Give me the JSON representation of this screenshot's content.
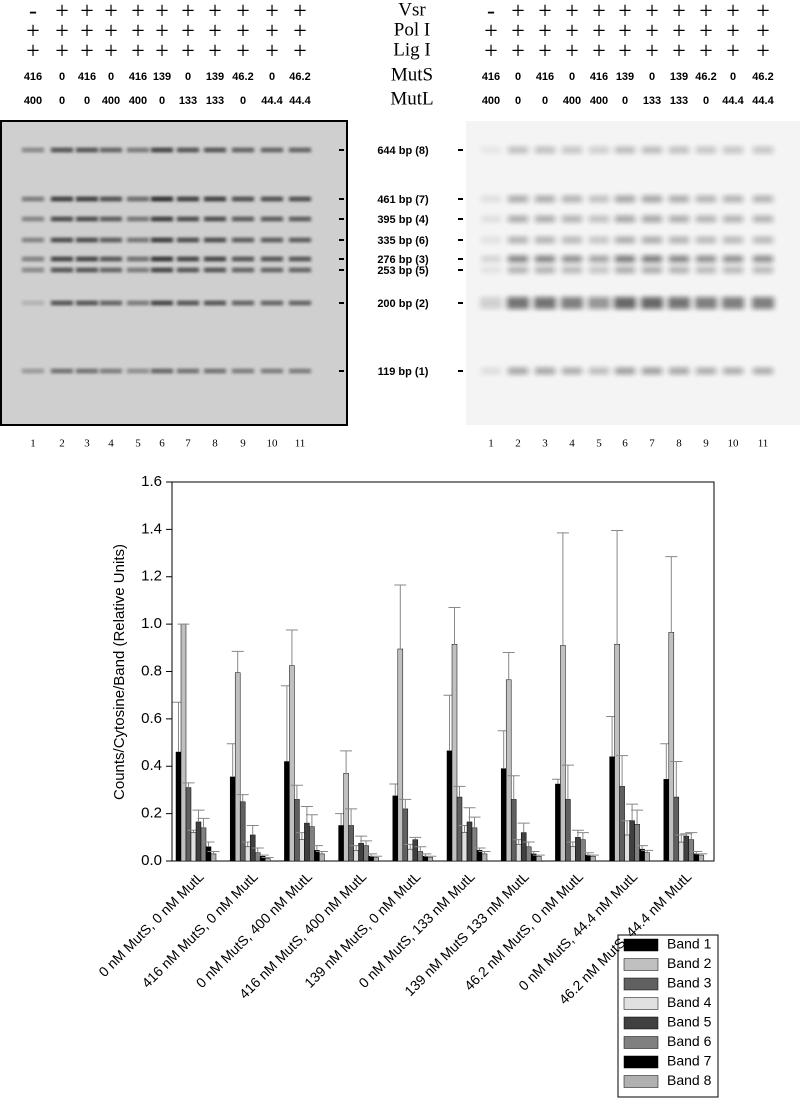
{
  "gel": {
    "rows": [
      {
        "label": "Vsr",
        "lanes": [
          "-",
          "+",
          "+",
          "+",
          "+",
          "+",
          "+",
          "+",
          "+",
          "+",
          "+"
        ]
      },
      {
        "label": "Pol I",
        "lanes": [
          "+",
          "+",
          "+",
          "+",
          "+",
          "+",
          "+",
          "+",
          "+",
          "+",
          "+"
        ]
      },
      {
        "label": "Lig I",
        "lanes": [
          "+",
          "+",
          "+",
          "+",
          "+",
          "+",
          "+",
          "+",
          "+",
          "+",
          "+"
        ]
      },
      {
        "label": "MutS",
        "lanes": [
          416,
          0,
          416,
          0,
          416,
          139,
          0,
          139,
          46.2,
          0,
          46.2
        ]
      },
      {
        "label": "MutL",
        "lanes": [
          400,
          0,
          0,
          400,
          400,
          0,
          133,
          133,
          0,
          44.4,
          44.4
        ]
      }
    ],
    "band_labels": [
      "644 bp (8)",
      "461 bp (7)",
      "395 bp (4)",
      "335 bp (6)",
      "276 bp (3)",
      "253 bp (5)",
      "200 bp (2)",
      "119 bp (1)"
    ],
    "lane_numbers": [
      1,
      2,
      3,
      4,
      5,
      6,
      7,
      8,
      9,
      10,
      11
    ]
  },
  "chart_data": {
    "type": "bar",
    "y_label": "Counts/Cytosine/Band (Relative Units)",
    "categories": [
      "0 nM MutS, 0 nM MutL",
      "416 nM MutS, 0 nM MutL",
      "0 nM MutS, 400 nM MutL",
      "416 nM MutS, 400 nM MutL",
      "139 nM MutS, 0 nM MutL",
      "0 nM MutS, 133 nM MutL",
      "139 nM MutS 133 nM MutL",
      "46.2 nM MutS, 0 nM MutL",
      "0 nM MutS, 44.4 nM MutL",
      "46.2 nM MutS, 44.4 nM MutL"
    ],
    "series": [
      {
        "name": "Band 1",
        "color": "#000000",
        "values": [
          0.46,
          0.355,
          0.42,
          0.15,
          0.275,
          0.465,
          0.39,
          0.325,
          0.44,
          0.345
        ],
        "errors": [
          0.21,
          0.14,
          0.32,
          0.05,
          0.05,
          0.235,
          0.16,
          0.02,
          0.17,
          0.15
        ]
      },
      {
        "name": "Band 2",
        "color": "#c0c0c0",
        "values": [
          1.0,
          0.795,
          0.825,
          0.37,
          0.895,
          0.915,
          0.765,
          0.91,
          0.915,
          0.965
        ],
        "errors": [
          0,
          0.09,
          0.15,
          0.095,
          0.27,
          0.155,
          0.115,
          0.475,
          0.48,
          0.32
        ]
      },
      {
        "name": "Band 3",
        "color": "#606060",
        "values": [
          0.31,
          0.25,
          0.26,
          0.15,
          0.22,
          0.27,
          0.26,
          0.26,
          0.315,
          0.27
        ],
        "errors": [
          0.02,
          0.03,
          0.06,
          0.07,
          0.04,
          0.045,
          0.1,
          0.145,
          0.13,
          0.15
        ]
      },
      {
        "name": "Band 4",
        "color": "#e0e0e0",
        "values": [
          0.12,
          0.06,
          0.09,
          0.045,
          0.05,
          0.12,
          0.07,
          0.06,
          0.11,
          0.08
        ],
        "errors": [
          0.01,
          0.02,
          0.03,
          0.02,
          0.02,
          0.03,
          0.02,
          0.02,
          0.06,
          0.03
        ]
      },
      {
        "name": "Band 5",
        "color": "#404040",
        "values": [
          0.165,
          0.11,
          0.16,
          0.075,
          0.09,
          0.165,
          0.12,
          0.1,
          0.17,
          0.105
        ],
        "errors": [
          0.05,
          0.04,
          0.07,
          0.03,
          0.01,
          0.06,
          0.04,
          0.03,
          0.07,
          0.01
        ]
      },
      {
        "name": "Band 6",
        "color": "#808080",
        "values": [
          0.14,
          0.035,
          0.145,
          0.065,
          0.04,
          0.14,
          0.06,
          0.09,
          0.155,
          0.09
        ],
        "errors": [
          0.04,
          0.02,
          0.05,
          0.02,
          0.02,
          0.045,
          0.02,
          0.03,
          0.06,
          0.03
        ]
      },
      {
        "name": "Band 7",
        "color": "#000000",
        "values": [
          0.06,
          0.02,
          0.045,
          0.02,
          0.02,
          0.045,
          0.03,
          0.025,
          0.05,
          0.03
        ],
        "errors": [
          0.02,
          0.005,
          0.02,
          0.01,
          0.01,
          0.01,
          0.01,
          0.01,
          0.015,
          0.01
        ]
      },
      {
        "name": "Band 8",
        "color": "#b0b0b0",
        "values": [
          0.03,
          0.01,
          0.03,
          0.015,
          0.015,
          0.03,
          0.02,
          0.02,
          0.035,
          0.025
        ],
        "errors": [
          0.01,
          0.005,
          0.01,
          0.005,
          0.005,
          0.01,
          0.005,
          0.005,
          0.01,
          0.005
        ]
      }
    ],
    "ylim": [
      0,
      1.6
    ],
    "yticks": [
      {
        "value": 0,
        "label": "0.0"
      },
      0.2,
      0.4,
      0.6,
      0.8,
      {
        "value": 1,
        "label": "1.0"
      },
      1.2,
      1.4,
      1.6
    ],
    "legend": "bottom-right"
  }
}
